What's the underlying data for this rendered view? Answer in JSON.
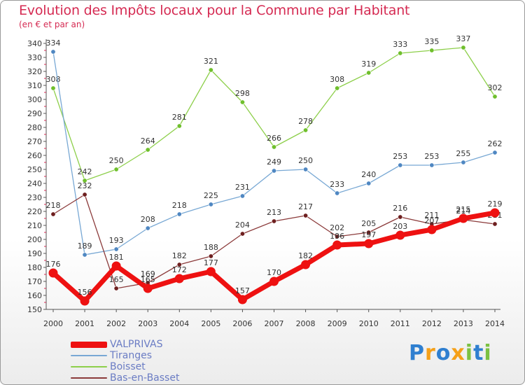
{
  "chart_data": {
    "type": "line",
    "title": "Evolution des Impôts locaux pour la Commune par Habitant",
    "subtitle": "(en € et par an)",
    "xlabel": "",
    "ylabel": "",
    "ylim": [
      150,
      340
    ],
    "y_ticks": [
      150,
      160,
      170,
      180,
      190,
      200,
      210,
      220,
      230,
      240,
      250,
      260,
      270,
      280,
      290,
      300,
      310,
      320,
      330,
      340
    ],
    "x": [
      "2000",
      "2001",
      "2002",
      "2003",
      "2004",
      "2005",
      "2006",
      "2007",
      "2008",
      "2009",
      "2010",
      "2011",
      "2012",
      "2013",
      "2014"
    ],
    "series": [
      {
        "name": "Boisset",
        "color": "#8dcf4a",
        "point_color": "#6fbf2c",
        "values": [
          308,
          242,
          250,
          264,
          281,
          321,
          298,
          266,
          278,
          308,
          319,
          333,
          335,
          337,
          302
        ]
      },
      {
        "name": "Tiranges",
        "color": "#78a8d4",
        "point_color": "#4f87c2",
        "values": [
          334,
          189,
          193,
          208,
          218,
          225,
          231,
          249,
          250,
          233,
          240,
          253,
          253,
          255,
          262
        ]
      },
      {
        "name": "Bas-en-Basset",
        "color": "#8b3a3a",
        "point_color": "#6e1f1f",
        "values": [
          218,
          232,
          165,
          169,
          182,
          188,
          204,
          213,
          217,
          202,
          205,
          216,
          211,
          214,
          211
        ]
      },
      {
        "name": "VALPRIVAS",
        "color": "#ee1111",
        "point_color": "#ee1111",
        "values": [
          176,
          156,
          181,
          165,
          172,
          177,
          157,
          170,
          182,
          196,
          197,
          203,
          207,
          215,
          219
        ]
      }
    ],
    "legend": {
      "placement": "bottom-left",
      "items": [
        {
          "name": "VALPRIVAS",
          "color": "#ee1111"
        },
        {
          "name": "Tiranges",
          "color": "#78a8d4"
        },
        {
          "name": "Boisset",
          "color": "#8dcf4a"
        },
        {
          "name": "Bas-en-Basset",
          "color": "#8b3a3a"
        }
      ]
    },
    "grid": false
  },
  "brand": {
    "letters": [
      "P",
      "r",
      "o",
      "x",
      "i",
      "t",
      "i"
    ],
    "colors": [
      "#2f7fd0",
      "#f5a018",
      "#2f7fd0",
      "#f5a018",
      "#7cc142",
      "#2f7fd0",
      "#7cc142"
    ]
  }
}
